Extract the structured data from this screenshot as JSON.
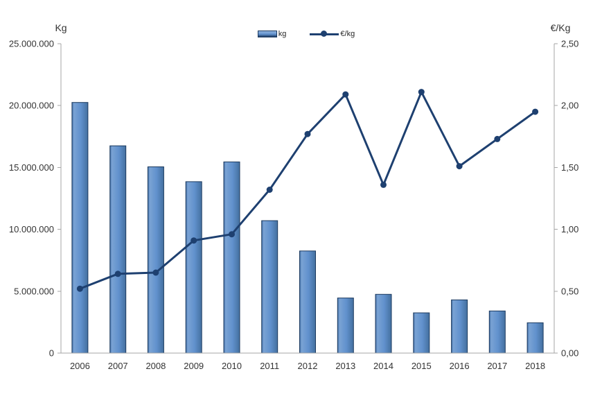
{
  "chart_data": {
    "type": "bar",
    "subtype": "bar+line-combo",
    "title": "",
    "categories": [
      "2006",
      "2007",
      "2008",
      "2009",
      "2010",
      "2011",
      "2012",
      "2013",
      "2014",
      "2015",
      "2016",
      "2017",
      "2018"
    ],
    "series": [
      {
        "name": "kg",
        "type": "bar",
        "axis": "left",
        "color": "#6191cd",
        "values": [
          20250000,
          16750000,
          15050000,
          13850000,
          15450000,
          10700000,
          8250000,
          4450000,
          4750000,
          3250000,
          4300000,
          3400000,
          2450000
        ]
      },
      {
        "name": "€/kg",
        "type": "line",
        "axis": "right",
        "color": "#1e4070",
        "values": [
          0.52,
          0.64,
          0.65,
          0.91,
          0.96,
          1.32,
          1.77,
          2.09,
          1.36,
          2.11,
          1.51,
          1.73,
          1.95
        ]
      }
    ],
    "left_axis": {
      "title": "Kg",
      "min": 0,
      "max": 25000000,
      "step": 5000000,
      "tick_labels": [
        "0",
        "5.000.000",
        "10.000.000",
        "15.000.000",
        "20.000.000",
        "25.000.000"
      ]
    },
    "right_axis": {
      "title": "€/Kg",
      "min": 0,
      "max": 2.5,
      "step": 0.5,
      "tick_labels": [
        "0,00",
        "0,50",
        "1,00",
        "1,50",
        "2,00",
        "2,50"
      ]
    },
    "legend": {
      "position": "top-center",
      "items": [
        "kg",
        "€/kg"
      ]
    },
    "grid": false,
    "colors": {
      "bar_fill_light": "#7aa3d4",
      "bar_fill_mid": "#6191cd",
      "bar_edge": "#1c3a5f",
      "line": "#1e4070",
      "axis_line": "#a6a6a6",
      "tick_text": "#333333"
    }
  }
}
